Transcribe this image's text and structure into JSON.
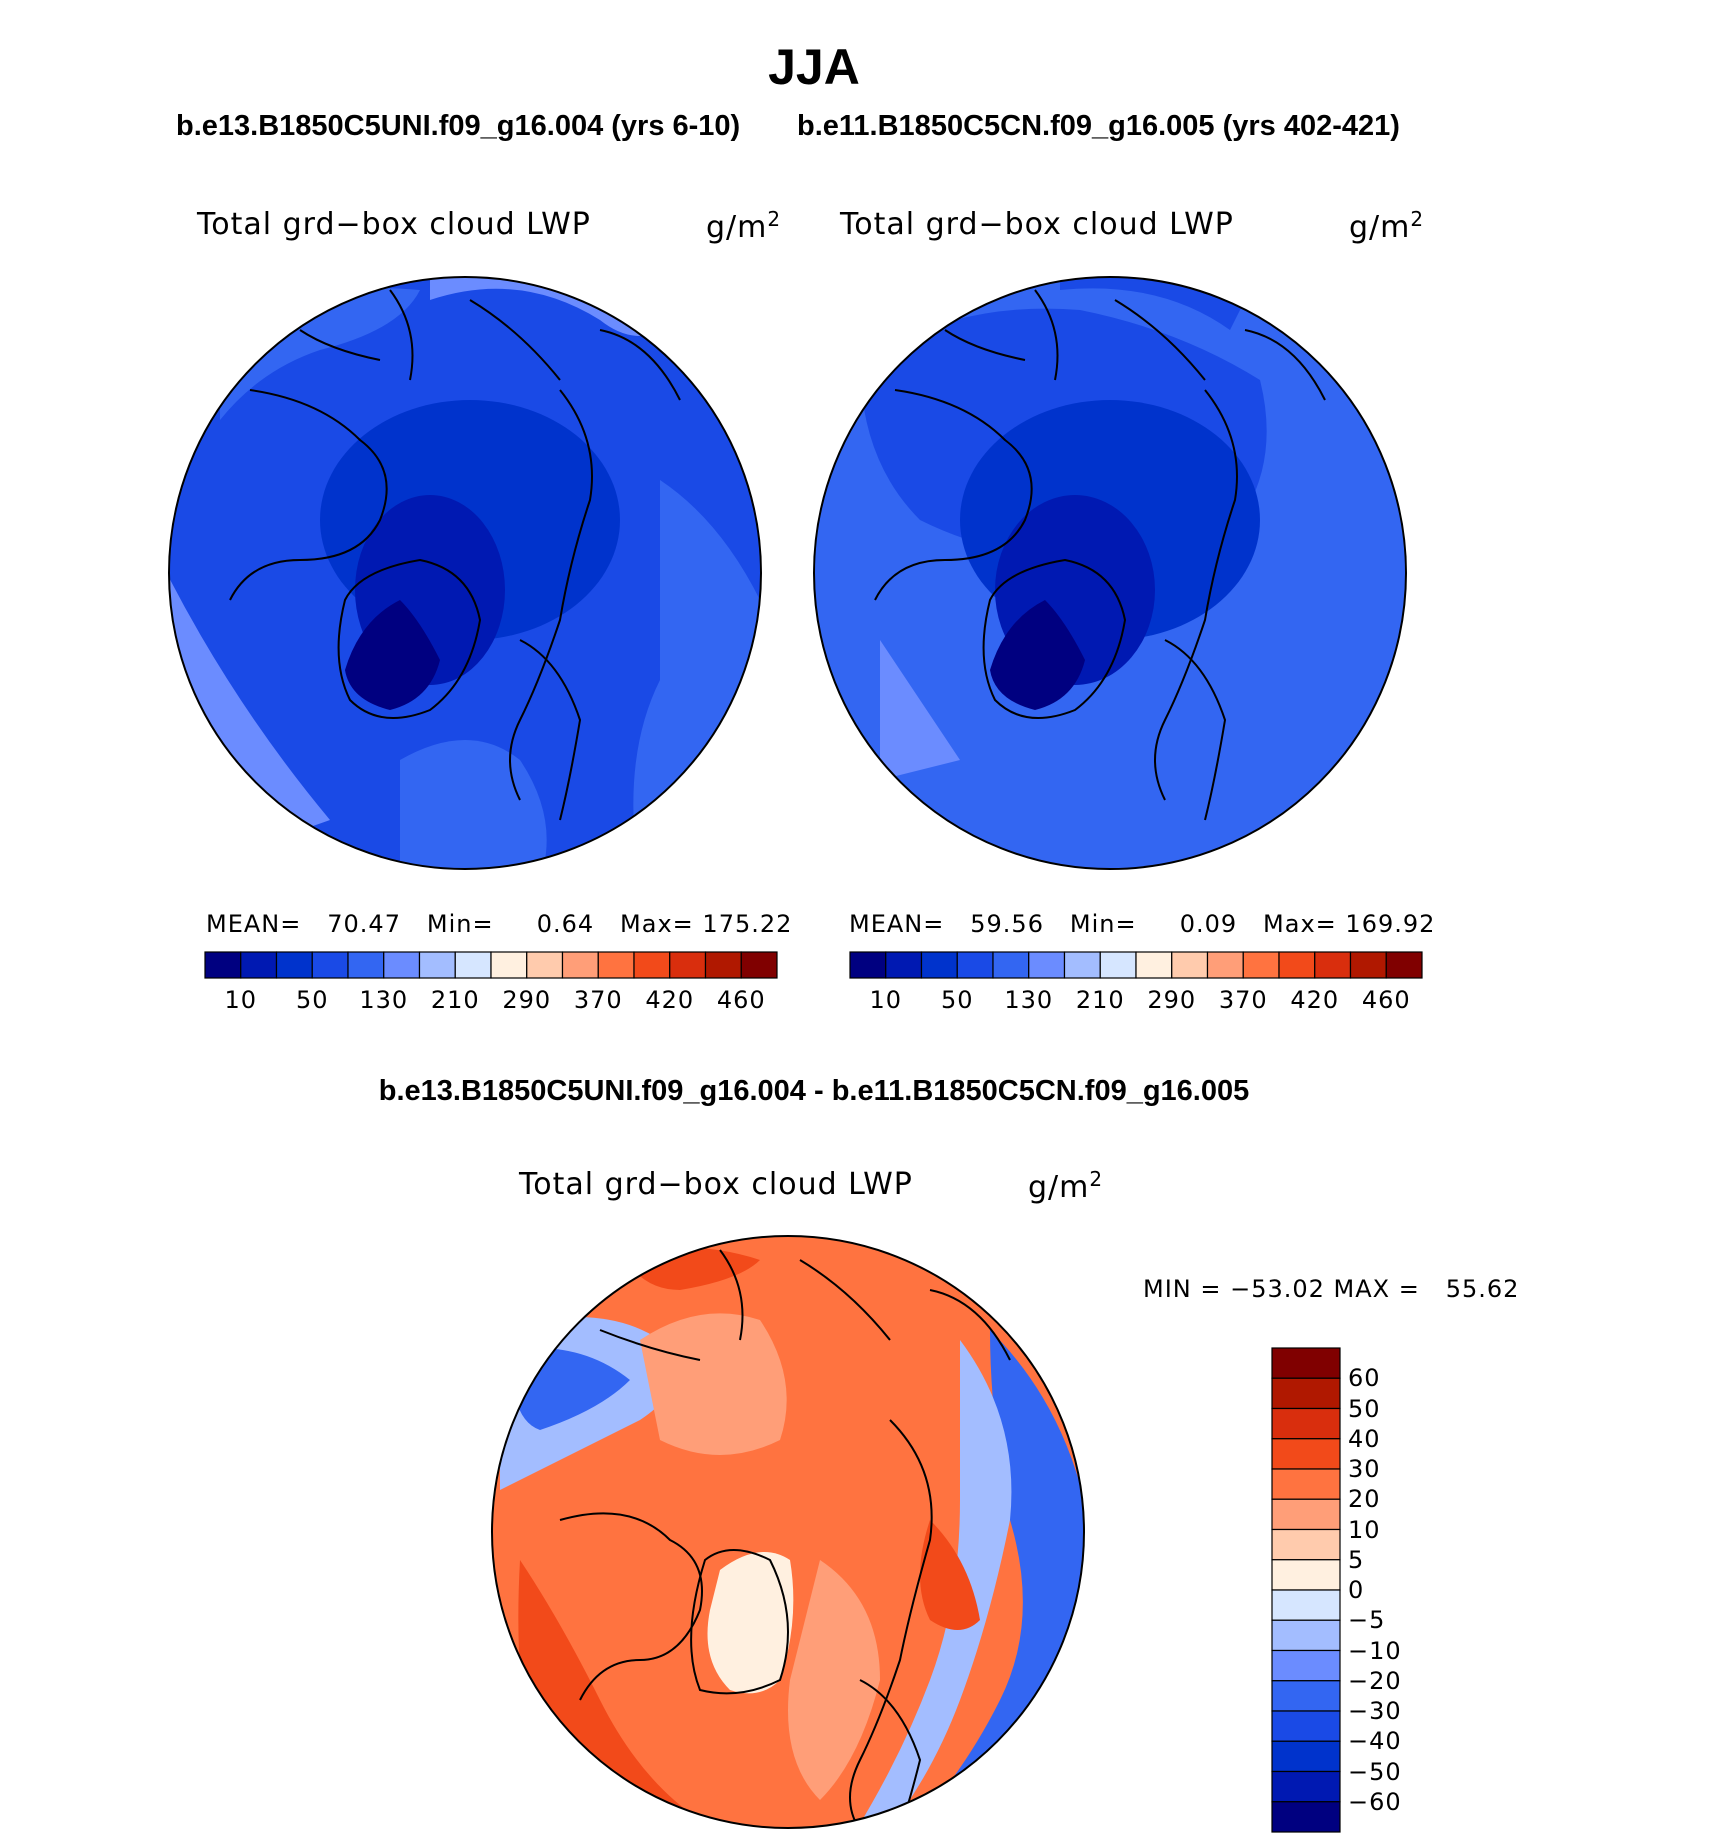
{
  "title": "JJA",
  "panels": [
    {
      "case": "b.e13.B1850C5UNI.f09_g16.004 (yrs 6-10)",
      "variable": "Total grd−box cloud LWP",
      "unit": "g/m",
      "unit_sup": "2",
      "stats": {
        "mean_label": "MEAN=",
        "mean": "70.47",
        "min_label": "Min=",
        "min": "0.64",
        "max_label": "Max=",
        "max": "175.22"
      },
      "mean_value": 70.47
    },
    {
      "case": "b.e11.B1850C5CN.f09_g16.005 (yrs 402-421)",
      "variable": "Total grd−box cloud LWP",
      "unit": "g/m",
      "unit_sup": "2",
      "stats": {
        "mean_label": "MEAN=",
        "mean": "59.56",
        "min_label": "Min=",
        "min": "0.09",
        "max_label": "Max=",
        "max": "169.92"
      },
      "mean_value": 59.56
    }
  ],
  "abs_colorbar": {
    "tick_labels": [
      "10",
      "50",
      "130",
      "210",
      "290",
      "370",
      "420",
      "460"
    ],
    "colors": [
      "#000080",
      "#0019b2",
      "#0033cc",
      "#1a4ae6",
      "#3366f2",
      "#6b8cff",
      "#a3bdff",
      "#d6e6ff",
      "#fff0e0",
      "#ffcbad",
      "#ff9e78",
      "#ff7340",
      "#f24a1a",
      "#d92e0d",
      "#b01800",
      "#800000"
    ]
  },
  "difference": {
    "title": "b.e13.B1850C5UNI.f09_g16.004 - b.e11.B1850C5CN.f09_g16.005",
    "variable": "Total grd−box cloud LWP",
    "unit": "g/m",
    "unit_sup": "2",
    "stats_text": "MIN = −53.02 MAX =   55.62",
    "colorbar": {
      "tick_labels": [
        "60",
        "50",
        "40",
        "30",
        "20",
        "10",
        "5",
        "0",
        "−5",
        "−10",
        "−20",
        "−30",
        "−40",
        "−50",
        "−60"
      ],
      "colors": [
        "#800000",
        "#b01800",
        "#d92e0d",
        "#f24a1a",
        "#ff7340",
        "#ff9e78",
        "#ffcbad",
        "#fff0e0",
        "#d6e6ff",
        "#a3bdff",
        "#6b8cff",
        "#3366f2",
        "#1a4ae6",
        "#0033cc",
        "#0019b2",
        "#000080"
      ]
    }
  },
  "map_colors": {
    "abs_light": "#3366f2",
    "abs_mid": "#1a4ae6",
    "abs_dark": "#0033cc",
    "abs_darker": "#0019b2",
    "abs_darkest": "#000080",
    "abs_pale": "#6b8cff",
    "diff_base": "#ff7340",
    "diff_light": "#ff9e78",
    "diff_pale": "#fff0e0",
    "diff_strong": "#f24a1a",
    "diff_blue": "#3366f2",
    "diff_blue_pale": "#a3bdff"
  }
}
